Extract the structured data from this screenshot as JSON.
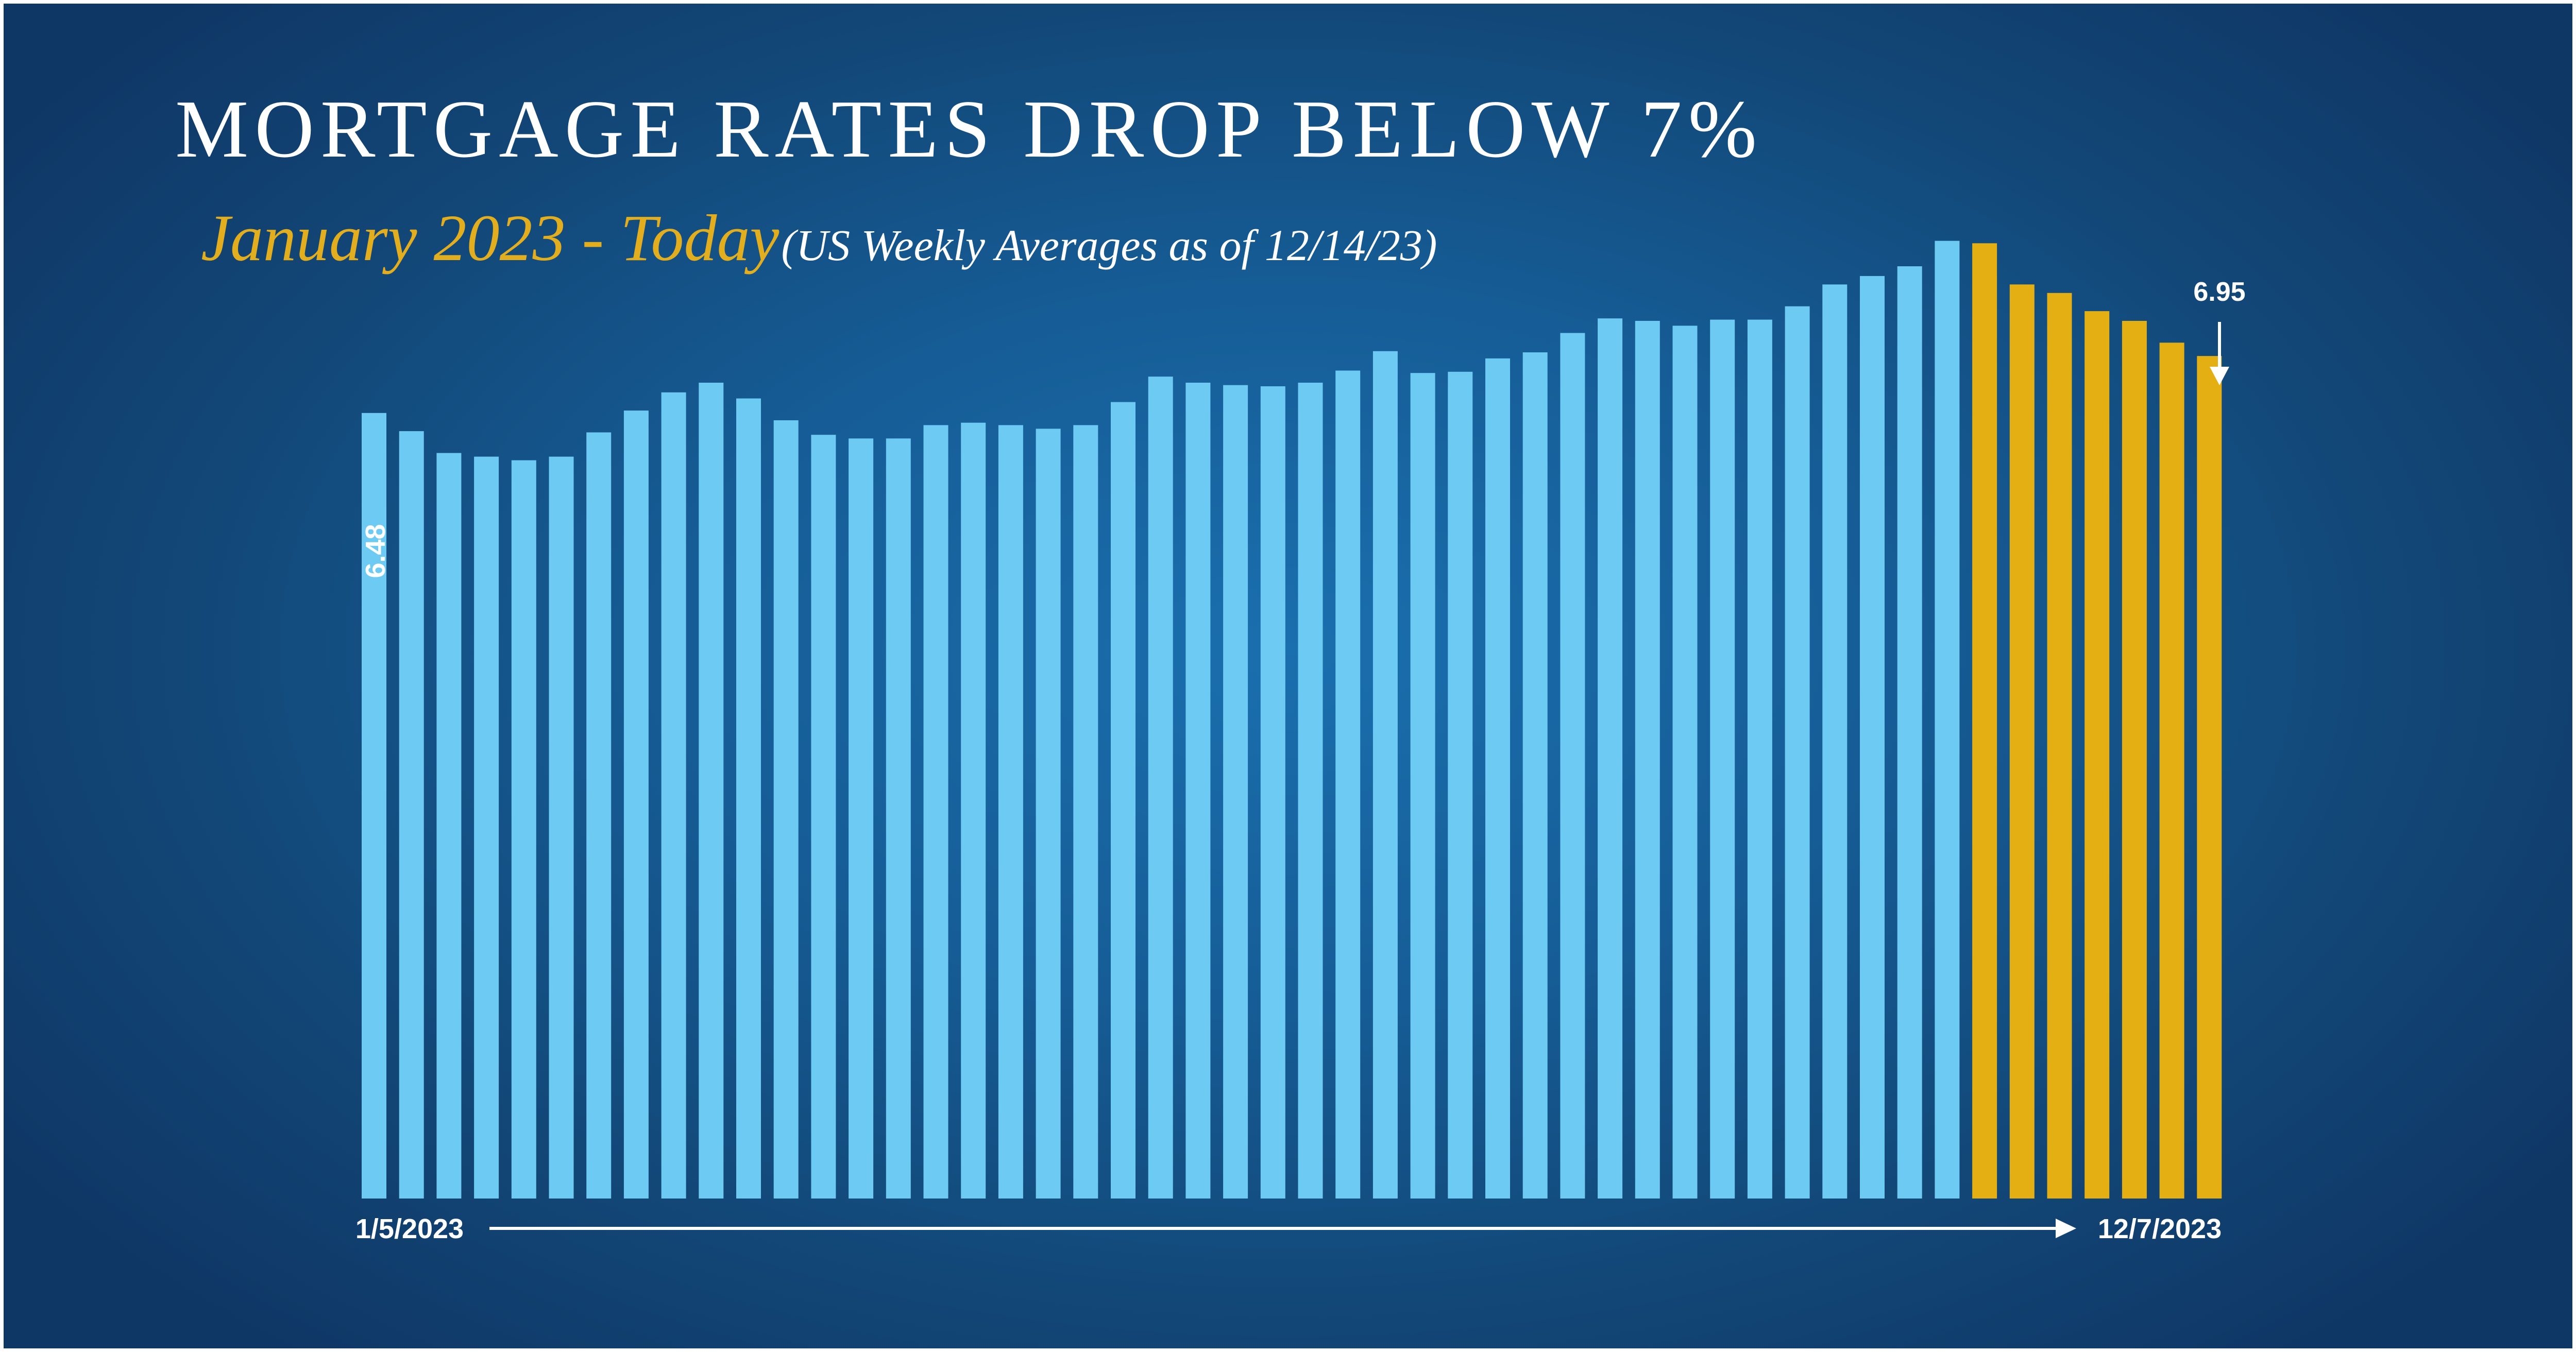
{
  "colors": {
    "background": "#175a93",
    "bar_primary": "#6dcaf2",
    "bar_highlight": "#e4af12",
    "text": "#ffffff",
    "subtitle_accent": "#e3ae1e"
  },
  "header": {
    "title": "MORTGAGE RATES DROP BELOW 7%",
    "subtitle_main": "January 2023 - Today",
    "subtitle_note": "(US Weekly Averages as of 12/14/23)"
  },
  "chart_data": {
    "type": "bar",
    "xlabel": "",
    "ylabel": "",
    "ylim": [
      0,
      8.2
    ],
    "grid": false,
    "start_label": "1/5/2023",
    "end_label": "12/7/2023",
    "first_value_label": "6.48",
    "last_value_label": "6.95",
    "highlight_from_index": 43,
    "values": [
      6.48,
      6.33,
      6.15,
      6.12,
      6.09,
      6.12,
      6.32,
      6.5,
      6.65,
      6.73,
      6.6,
      6.42,
      6.3,
      6.27,
      6.27,
      6.38,
      6.4,
      6.38,
      6.35,
      6.38,
      6.57,
      6.78,
      6.73,
      6.71,
      6.7,
      6.73,
      6.83,
      6.99,
      6.81,
      6.82,
      6.93,
      6.98,
      7.14,
      7.26,
      7.24,
      7.2,
      7.25,
      7.25,
      7.36,
      7.54,
      7.61,
      7.69,
      7.9,
      7.88,
      7.54,
      7.47,
      7.32,
      7.24,
      7.06,
      6.95
    ]
  }
}
